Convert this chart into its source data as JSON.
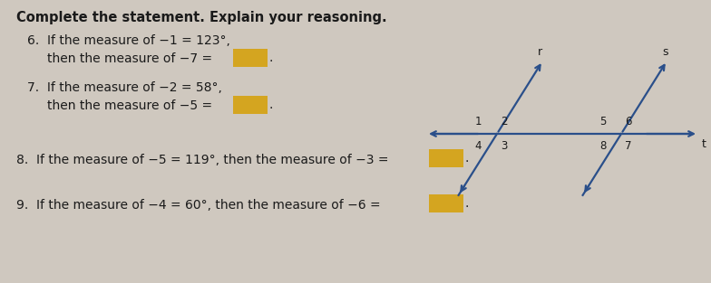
{
  "title": "Complete the statement. Explain your reasoning.",
  "bg_color": "#cfc8bf",
  "text_color": "#1a1a1a",
  "q6_line1": "6.  If the measure of ∡1 = 123°,",
  "q6_line2": "       then the measure of ∡7 =",
  "q7_line1": "7.  If the measure of −2 = 58°,",
  "q7_line2": "       then the measure of −5 =",
  "q8": "8.  If the measure of −5 = 119°, then the measure of −3 =",
  "q9": "9.  If the measure of −4 = 60°, then the measure of −6 =",
  "box_color": "#d4a520",
  "line_color": "#2a4f8a",
  "diagram_labels": [
    "1",
    "2",
    "4",
    "3",
    "5",
    "6",
    "8",
    "7"
  ],
  "diagram_rs": [
    "r",
    "s",
    "t"
  ]
}
